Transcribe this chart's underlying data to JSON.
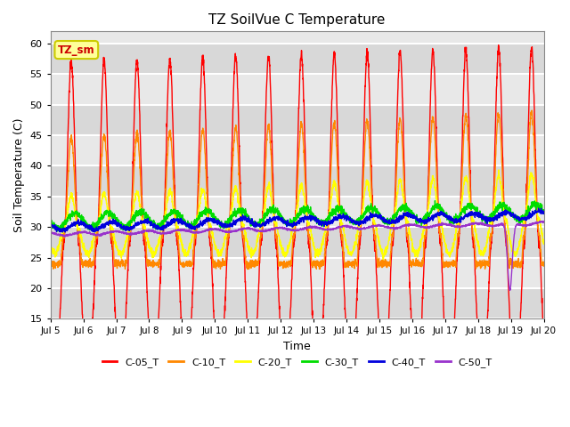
{
  "title": "TZ SoilVue C Temperature",
  "xlabel": "Time",
  "ylabel": "Soil Temperature (C)",
  "ylim": [
    15,
    62
  ],
  "yticks": [
    15,
    20,
    25,
    30,
    35,
    40,
    45,
    50,
    55,
    60
  ],
  "bg_color": "#ffffff",
  "plot_bg_color": "#f0f0f0",
  "grid_color": "#ffffff",
  "annotation_text": "TZ_sm",
  "annotation_bg": "#ffff99",
  "annotation_border": "#cccc00",
  "series": [
    {
      "label": "C-05_T",
      "color": "#ff0000"
    },
    {
      "label": "C-10_T",
      "color": "#ff8800"
    },
    {
      "label": "C-20_T",
      "color": "#ffff00"
    },
    {
      "label": "C-30_T",
      "color": "#00dd00"
    },
    {
      "label": "C-40_T",
      "color": "#0000dd"
    },
    {
      "label": "C-50_T",
      "color": "#9933cc"
    }
  ],
  "xtick_labels": [
    "Jul 5",
    "Jul 6",
    "Jul 7",
    "Jul 8",
    "Jul 9",
    "Jul 10",
    "Jul 11",
    "Jul 12",
    "Jul 13",
    "Jul 14",
    "Jul 15",
    "Jul 16",
    "Jul 17",
    "Jul 18",
    "Jul 19",
    "Jul 20"
  ]
}
